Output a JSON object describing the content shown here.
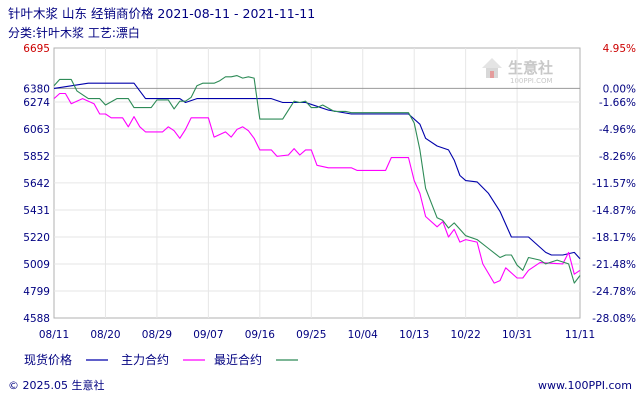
{
  "header": {
    "title": "针叶木浆 山东 经销商价格 2021-08-11 - 2021-11-11",
    "subtitle": "分类:针叶木浆 工艺:漂白"
  },
  "watermark": {
    "name": "生意社",
    "url": "100PPI.COM"
  },
  "footer": {
    "left": "© 2025.05 生意社",
    "right": "www.100PPI.com"
  },
  "colors": {
    "spot": "#0000aa",
    "main": "#ff00ff",
    "recent": "#2e8b57",
    "axis": "#000080",
    "top_tick": "#cc0000"
  },
  "chart_data": {
    "type": "line",
    "title": "针叶木浆 山东 经销商价格 2021-08-11 - 2021-11-11",
    "ylim": [
      4588,
      6695
    ],
    "yticks": [
      "6695",
      "6380",
      "6274",
      "6063",
      "5852",
      "5642",
      "5431",
      "5220",
      "5009",
      "4799",
      "4588"
    ],
    "ytick_values": [
      6695,
      6380,
      6274,
      6063,
      5852,
      5642,
      5431,
      5220,
      5009,
      4799,
      4588
    ],
    "yticks_right": [
      "4.95%",
      "0.00%",
      "-1.66%",
      "-4.96%",
      "-8.26%",
      "-11.57%",
      "-14.87%",
      "-18.17%",
      "-21.48%",
      "-24.78%",
      "-28.08%"
    ],
    "reference_value": 6380,
    "xlim": [
      0,
      92
    ],
    "xticks": [
      "08/11",
      "08/20",
      "08/29",
      "09/07",
      "09/16",
      "09/25",
      "10/04",
      "10/13",
      "10/22",
      "10/31",
      "11/11"
    ],
    "xtick_days": [
      0,
      9,
      18,
      27,
      36,
      45,
      54,
      63,
      72,
      81,
      92
    ],
    "series": [
      {
        "name": "现货价格",
        "color": "#0000aa",
        "points": [
          [
            0,
            6380
          ],
          [
            3,
            6400
          ],
          [
            6,
            6420
          ],
          [
            14,
            6420
          ],
          [
            16,
            6300
          ],
          [
            22,
            6300
          ],
          [
            23,
            6270
          ],
          [
            25,
            6300
          ],
          [
            38,
            6300
          ],
          [
            40,
            6270
          ],
          [
            44,
            6270
          ],
          [
            46,
            6240
          ],
          [
            48,
            6210
          ],
          [
            52,
            6180
          ],
          [
            62,
            6180
          ],
          [
            64,
            6100
          ],
          [
            65,
            5990
          ],
          [
            67,
            5930
          ],
          [
            69,
            5900
          ],
          [
            70,
            5820
          ],
          [
            71,
            5700
          ],
          [
            72,
            5660
          ],
          [
            74,
            5650
          ],
          [
            76,
            5560
          ],
          [
            78,
            5420
          ],
          [
            80,
            5220
          ],
          [
            83,
            5220
          ],
          [
            86,
            5100
          ],
          [
            87,
            5080
          ],
          [
            89,
            5080
          ],
          [
            91,
            5100
          ],
          [
            92,
            5050
          ]
        ]
      },
      {
        "name": "主力合约",
        "color": "#ff00ff",
        "points": [
          [
            0,
            6300
          ],
          [
            1,
            6340
          ],
          [
            2,
            6340
          ],
          [
            3,
            6260
          ],
          [
            5,
            6300
          ],
          [
            7,
            6260
          ],
          [
            8,
            6180
          ],
          [
            9,
            6180
          ],
          [
            10,
            6150
          ],
          [
            12,
            6150
          ],
          [
            13,
            6080
          ],
          [
            14,
            6160
          ],
          [
            15,
            6080
          ],
          [
            16,
            6040
          ],
          [
            19,
            6040
          ],
          [
            20,
            6080
          ],
          [
            21,
            6050
          ],
          [
            22,
            5990
          ],
          [
            23,
            6060
          ],
          [
            24,
            6150
          ],
          [
            27,
            6150
          ],
          [
            28,
            6000
          ],
          [
            30,
            6040
          ],
          [
            31,
            6000
          ],
          [
            32,
            6060
          ],
          [
            33,
            6080
          ],
          [
            34,
            6050
          ],
          [
            35,
            5990
          ],
          [
            36,
            5900
          ],
          [
            38,
            5900
          ],
          [
            39,
            5850
          ],
          [
            41,
            5860
          ],
          [
            42,
            5910
          ],
          [
            43,
            5860
          ],
          [
            44,
            5900
          ],
          [
            45,
            5900
          ],
          [
            46,
            5780
          ],
          [
            48,
            5760
          ],
          [
            52,
            5760
          ],
          [
            53,
            5740
          ],
          [
            58,
            5740
          ],
          [
            59,
            5840
          ],
          [
            62,
            5840
          ],
          [
            63,
            5660
          ],
          [
            64,
            5560
          ],
          [
            65,
            5380
          ],
          [
            67,
            5300
          ],
          [
            68,
            5340
          ],
          [
            69,
            5220
          ],
          [
            70,
            5280
          ],
          [
            71,
            5180
          ],
          [
            72,
            5200
          ],
          [
            74,
            5180
          ],
          [
            75,
            5010
          ],
          [
            77,
            4860
          ],
          [
            78,
            4880
          ],
          [
            79,
            4980
          ],
          [
            81,
            4900
          ],
          [
            82,
            4900
          ],
          [
            83,
            4960
          ],
          [
            85,
            5020
          ],
          [
            89,
            5010
          ],
          [
            90,
            5100
          ],
          [
            91,
            4930
          ],
          [
            92,
            4960
          ]
        ]
      },
      {
        "name": "最近合约",
        "color": "#2e8b57",
        "points": [
          [
            0,
            6400
          ],
          [
            1,
            6450
          ],
          [
            3,
            6450
          ],
          [
            4,
            6360
          ],
          [
            6,
            6300
          ],
          [
            8,
            6300
          ],
          [
            9,
            6250
          ],
          [
            11,
            6300
          ],
          [
            13,
            6300
          ],
          [
            14,
            6230
          ],
          [
            17,
            6230
          ],
          [
            18,
            6290
          ],
          [
            20,
            6290
          ],
          [
            21,
            6220
          ],
          [
            22,
            6280
          ],
          [
            23,
            6280
          ],
          [
            24,
            6310
          ],
          [
            25,
            6400
          ],
          [
            26,
            6420
          ],
          [
            28,
            6420
          ],
          [
            29,
            6440
          ],
          [
            30,
            6470
          ],
          [
            31,
            6470
          ],
          [
            32,
            6480
          ],
          [
            33,
            6460
          ],
          [
            34,
            6470
          ],
          [
            35,
            6460
          ],
          [
            36,
            6140
          ],
          [
            38,
            6140
          ],
          [
            39,
            6140
          ],
          [
            40,
            6140
          ],
          [
            42,
            6280
          ],
          [
            43,
            6270
          ],
          [
            44,
            6280
          ],
          [
            45,
            6230
          ],
          [
            46,
            6230
          ],
          [
            47,
            6250
          ],
          [
            49,
            6200
          ],
          [
            51,
            6200
          ],
          [
            52,
            6190
          ],
          [
            62,
            6190
          ],
          [
            63,
            6110
          ],
          [
            64,
            5900
          ],
          [
            65,
            5600
          ],
          [
            67,
            5370
          ],
          [
            68,
            5350
          ],
          [
            69,
            5290
          ],
          [
            70,
            5330
          ],
          [
            72,
            5230
          ],
          [
            74,
            5200
          ],
          [
            76,
            5130
          ],
          [
            78,
            5060
          ],
          [
            79,
            5080
          ],
          [
            80,
            5080
          ],
          [
            81,
            5000
          ],
          [
            82,
            4960
          ],
          [
            83,
            5060
          ],
          [
            85,
            5040
          ],
          [
            86,
            5010
          ],
          [
            88,
            5040
          ],
          [
            90,
            5010
          ],
          [
            91,
            4860
          ],
          [
            92,
            4920
          ]
        ]
      }
    ]
  }
}
